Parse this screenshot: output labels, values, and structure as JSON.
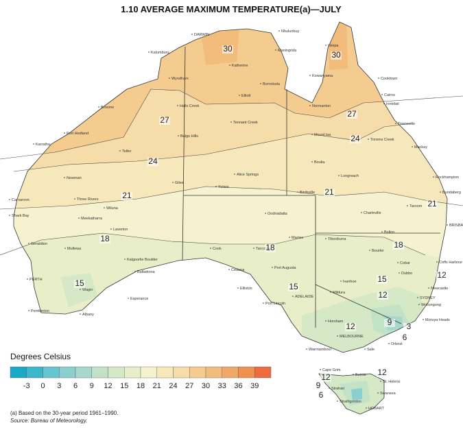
{
  "title": "1.10  AVERAGE MAXIMUM TEMPERATURE(a)—JULY",
  "legend": {
    "title": "Degrees Celsius",
    "labels": [
      "-3",
      "0",
      "3",
      "6",
      "9",
      "12",
      "15",
      "18",
      "21",
      "24",
      "27",
      "30",
      "33",
      "36",
      "39"
    ],
    "colors": [
      "#1aa8c7",
      "#3cb8cc",
      "#68c4d0",
      "#8ccfcf",
      "#a8d8cc",
      "#c2e2c8",
      "#d6e9c6",
      "#e8efc8",
      "#f6f2cf",
      "#f7e8bc",
      "#f6dca8",
      "#f4cc90",
      "#f2bc7c",
      "#f0a868",
      "#ee9050",
      "#ec6c40"
    ]
  },
  "contour_labels": [
    30,
    30,
    27,
    27,
    24,
    24,
    21,
    21,
    21,
    18,
    18,
    18,
    15,
    15,
    15,
    12,
    12,
    12,
    9,
    3,
    6,
    12,
    12,
    9,
    6
  ],
  "places": [
    "DARWIN",
    "Nhulunbuy",
    "Weipa",
    "Kalumburu",
    "Maningrida",
    "Katherine",
    "Wyndham",
    "Borroloola",
    "Kowanyama",
    "Cooktown",
    "Cairns",
    "Innisfail",
    "Elliott",
    "Normanton",
    "Halls Creek",
    "Broome",
    "Tennant Creek",
    "Townsville",
    "Port Hedland",
    "Balgo Hills",
    "Mount Isa",
    "Torrens Creek",
    "Karratha",
    "Telfer",
    "Mackay",
    "Boulia",
    "Alice Springs",
    "Longreach",
    "Rockhampton",
    "Newman",
    "Giles",
    "Yulara",
    "Birdsville",
    "Bundaberg",
    "Carnarvon",
    "Three Rivers",
    "Wiluna",
    "Charleville",
    "Taroom",
    "Shark Bay",
    "Meekatharra",
    "Oodnadatta",
    "BRISBANE",
    "Laverton",
    "Bollon",
    "Geraldton",
    "Mullewa",
    "Marree",
    "Tibooburra",
    "Cook",
    "Tarcoola",
    "Bourke",
    "Kalgoorlie Boulder",
    "Cobar",
    "Coffs Harbour",
    "Port Augusta",
    "Ceduna",
    "Balladonia",
    "Dubbo",
    "PERTH",
    "Wagin",
    "Elliston",
    "Ivanhoe",
    "Newcastle",
    "Esperance",
    "ADELAIDE",
    "Mildura",
    "SYDNEY",
    "Port Lincoln",
    "Wollongong",
    "Pemberton",
    "Albany",
    "Horsham",
    "Moruya Heads",
    "MELBOURNE",
    "Orbost",
    "Sale",
    "Warrnambool",
    "Cape Grim",
    "Burnie",
    "St. Helens",
    "Strahan",
    "Swansea",
    "Strathgordon",
    "HOBART"
  ],
  "footnote": "(a) Based on the 30-year period 1961–1990.",
  "source": "Source: Bureau of Meteorology."
}
